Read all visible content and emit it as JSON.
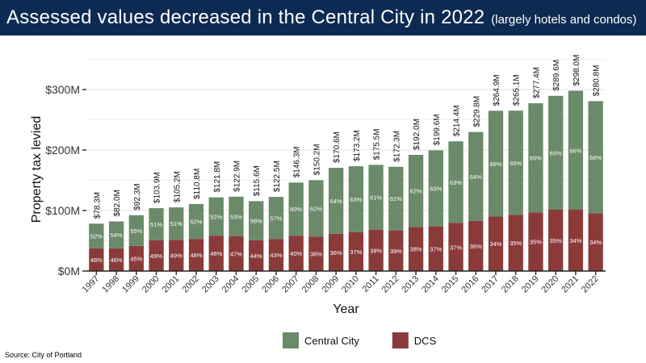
{
  "header": {
    "title": "Assessed values decreased in the Central City in 2022",
    "subtitle": "(largely hotels and condos)"
  },
  "source": "Source: City of Portland",
  "colors": {
    "Central City": "#6a8a69",
    "DCS": "#8b3a3a",
    "header": "#0d2a52"
  },
  "chart_data": {
    "type": "bar",
    "stacked": true,
    "xlabel": "Year",
    "ylabel": "Property tax levied",
    "ylim": [
      0,
      300
    ],
    "yticks": [
      {
        "v": 0,
        "label": "$0M"
      },
      {
        "v": 100,
        "label": "$100M"
      },
      {
        "v": 200,
        "label": "$200M"
      },
      {
        "v": 300,
        "label": "$300M"
      }
    ],
    "grid": true,
    "legend": "bottom",
    "categories": [
      "1997",
      "1998",
      "1999",
      "2000",
      "2001",
      "2002",
      "2003",
      "2004",
      "2005",
      "2006",
      "2007",
      "2008",
      "2009",
      "2010",
      "2011",
      "2012",
      "2013",
      "2014",
      "2015",
      "2016",
      "2017",
      "2018",
      "2019",
      "2020",
      "2021",
      "2022"
    ],
    "totals": [
      78.3,
      82.0,
      92.3,
      103.9,
      105.2,
      110.8,
      121.8,
      122.9,
      115.6,
      122.5,
      146.3,
      150.2,
      170.6,
      173.2,
      175.5,
      172.3,
      192.0,
      199.6,
      214.4,
      229.8,
      264.9,
      265.1,
      277.4,
      289.6,
      298.0,
      280.8
    ],
    "total_labels": [
      "$78.3M",
      "$82.0M",
      "$92.3M",
      "$103.9M",
      "$105.2M",
      "$110.8M",
      "$121.8M",
      "$122.9M",
      "$115.6M",
      "$122.5M",
      "$146.3M",
      "$150.2M",
      "$170.6M",
      "$173.2M",
      "$175.5M",
      "$172.3M",
      "$192.0M",
      "$199.6M",
      "$214.4M",
      "$229.8M",
      "$264.9M",
      "$265.1M",
      "$277.4M",
      "$289.6M",
      "$298.0M",
      "$280.8M"
    ],
    "series": [
      {
        "name": "DCS",
        "percent": [
          48,
          46,
          45,
          49,
          49,
          48,
          48,
          47,
          44,
          43,
          40,
          38,
          36,
          37,
          39,
          39,
          38,
          37,
          37,
          36,
          34,
          35,
          35,
          35,
          34,
          34
        ]
      },
      {
        "name": "Central City",
        "percent": [
          52,
          54,
          55,
          51,
          51,
          52,
          52,
          53,
          56,
          57,
          60,
          62,
          64,
          63,
          61,
          61,
          62,
          63,
          63,
          64,
          66,
          65,
          65,
          65,
          66,
          66
        ]
      }
    ],
    "legend_order": [
      "Central City",
      "DCS"
    ]
  }
}
